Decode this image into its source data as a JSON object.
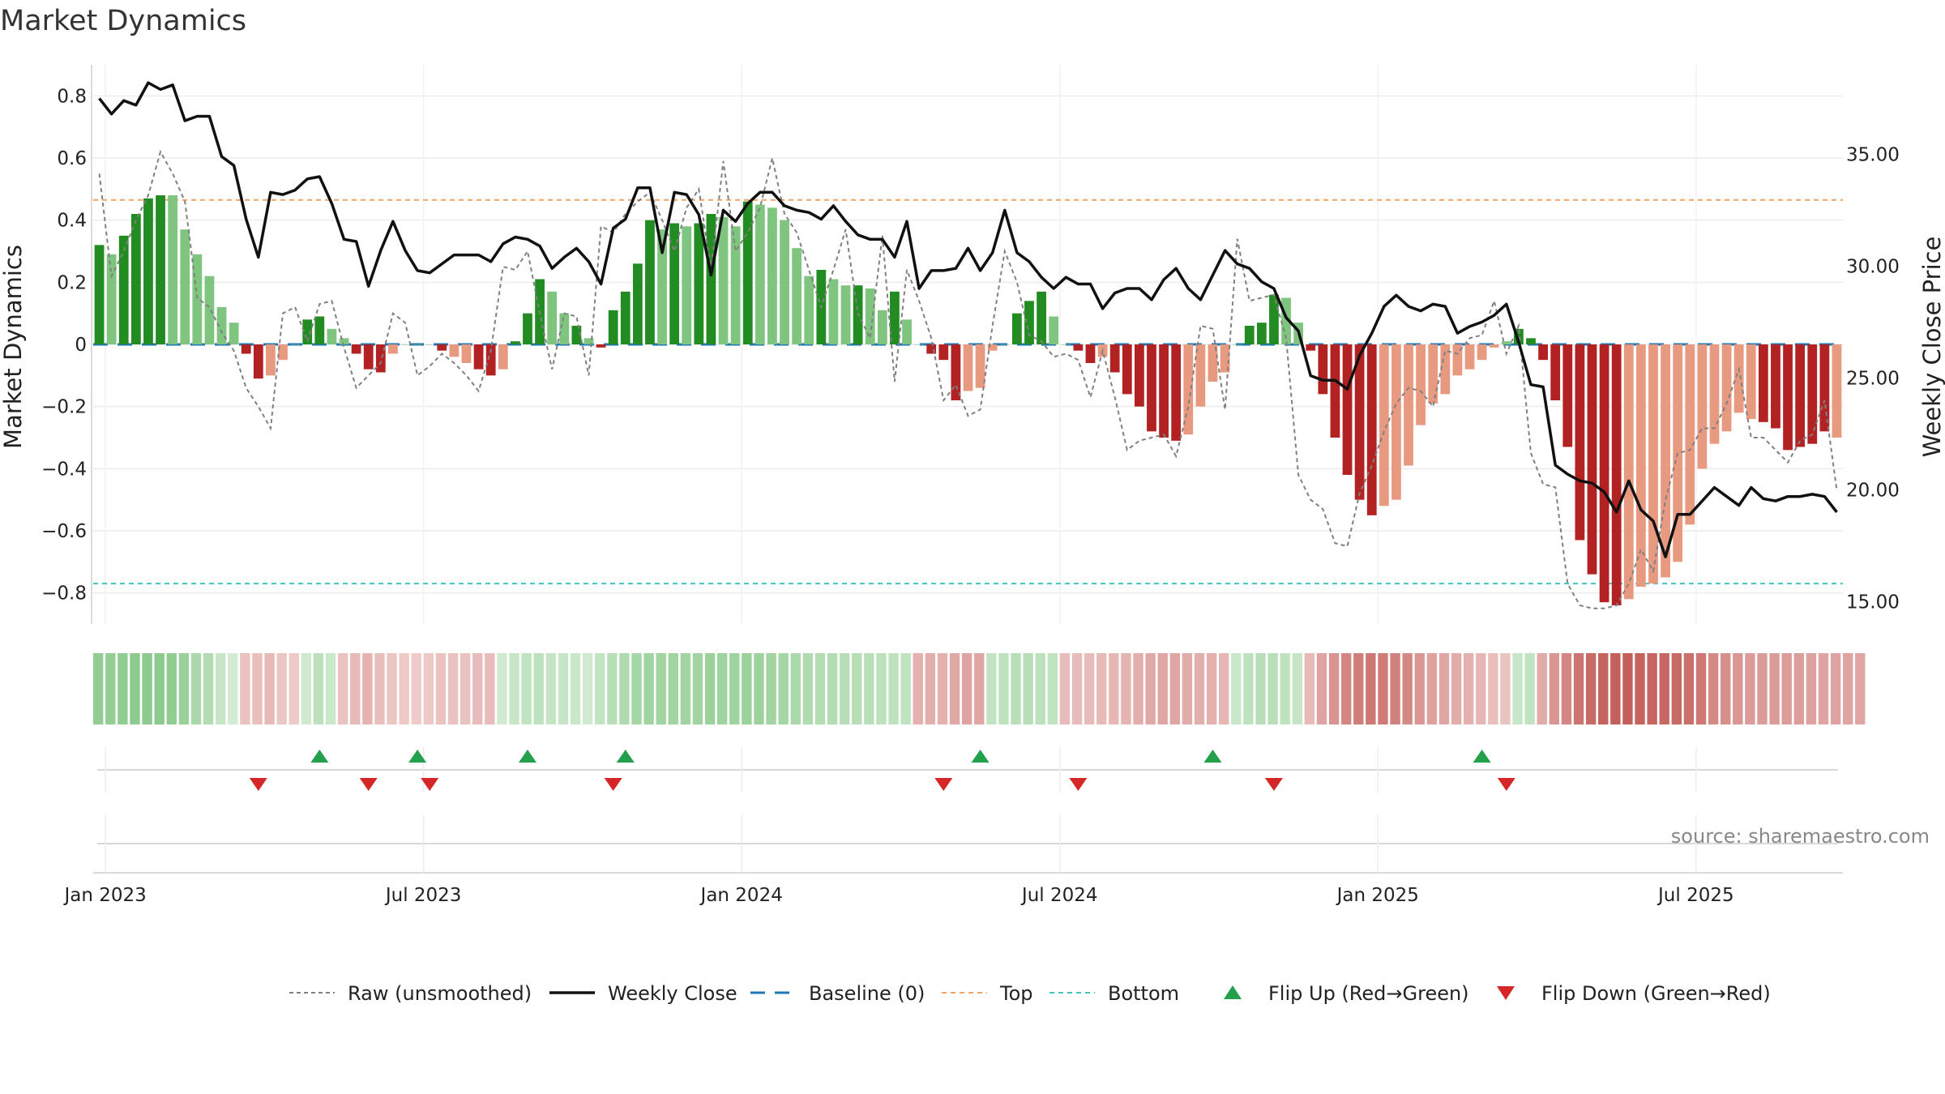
{
  "title": "Market Dynamics",
  "source": "source: sharemaestro.com",
  "colors": {
    "green_dark": "#228B22",
    "green_light": "#7FC47F",
    "red_dark": "#B22222",
    "red_light": "#E89A80",
    "raw": "#808080",
    "close": "#111111",
    "baseline": "#1f77b4",
    "top": "#F4A460",
    "bottom": "#40C4C4",
    "flip_up": "#22A04B",
    "flip_down": "#D62728"
  },
  "chart_data": {
    "type": "bar",
    "ylabel_left": "Market Dynamics",
    "ylabel_right": "Weekly Close Price",
    "ylim_left": [
      -0.9,
      0.9
    ],
    "ylim_right": [
      14.0,
      39.0
    ],
    "y_ticks_left": [
      0.8,
      0.6,
      0.4,
      0.2,
      0,
      -0.2,
      -0.4,
      -0.6,
      -0.8
    ],
    "y_ticks_left_labels": [
      "0.8",
      "0.6",
      "0.4",
      "0.2",
      "0",
      "−0.2",
      "−0.4",
      "−0.6",
      "−0.8"
    ],
    "y_ticks_right": [
      35.0,
      30.0,
      25.0,
      20.0,
      15.0
    ],
    "y_ticks_right_labels": [
      "35.00",
      "30.00",
      "25.00",
      "20.00",
      "15.00"
    ],
    "x_ticks": [
      "Jan 2023",
      "Jul 2023",
      "Jan 2024",
      "Jul 2024",
      "Jan 2025",
      "Jul 2025"
    ],
    "x_tick_weeks": [
      1.5,
      27.5,
      53.5,
      79.5,
      105.5,
      131.5
    ],
    "top_line": 0.465,
    "bottom_line": -0.77,
    "baseline": 0,
    "bars": [
      0.32,
      0.29,
      0.35,
      0.42,
      0.47,
      0.48,
      0.48,
      0.37,
      0.29,
      0.22,
      0.12,
      0.07,
      -0.03,
      -0.11,
      -0.1,
      -0.05,
      0,
      0.08,
      0.09,
      0.05,
      0.02,
      -0.03,
      -0.08,
      -0.09,
      -0.03,
      0,
      0,
      0,
      -0.02,
      -0.04,
      -0.06,
      -0.08,
      -0.1,
      -0.08,
      0.01,
      0.1,
      0.21,
      0.17,
      0.1,
      0.06,
      0.02,
      -0.01,
      0.11,
      0.17,
      0.26,
      0.4,
      0.37,
      0.39,
      0.38,
      0.39,
      0.42,
      0.41,
      0.38,
      0.46,
      0.45,
      0.44,
      0.4,
      0.31,
      0.22,
      0.24,
      0.21,
      0.19,
      0.19,
      0.18,
      0.11,
      0.17,
      0.08,
      0,
      -0.03,
      -0.05,
      -0.18,
      -0.15,
      -0.14,
      -0.02,
      0,
      0.1,
      0.14,
      0.17,
      0.09,
      0,
      -0.02,
      -0.06,
      -0.04,
      -0.09,
      -0.16,
      -0.2,
      -0.28,
      -0.3,
      -0.31,
      -0.29,
      -0.2,
      -0.12,
      -0.09,
      0,
      0.06,
      0.07,
      0.16,
      0.15,
      0.07,
      -0.02,
      -0.16,
      -0.3,
      -0.42,
      -0.5,
      -0.55,
      -0.52,
      -0.5,
      -0.39,
      -0.26,
      -0.19,
      -0.16,
      -0.1,
      -0.08,
      -0.05,
      -0.01,
      0.01,
      0.05,
      0.02,
      -0.05,
      -0.18,
      -0.33,
      -0.63,
      -0.74,
      -0.83,
      -0.84,
      -0.82,
      -0.78,
      -0.77,
      -0.75,
      -0.7,
      -0.58,
      -0.4,
      -0.32,
      -0.28,
      -0.22,
      -0.24,
      -0.25,
      -0.27,
      -0.34,
      -0.33,
      -0.32,
      -0.28,
      -0.3
    ],
    "shade": [
      1,
      0,
      1,
      1,
      1,
      1,
      0,
      0,
      0,
      0,
      0,
      0,
      1,
      1,
      0,
      0,
      0,
      1,
      1,
      0,
      0,
      1,
      1,
      1,
      0,
      0,
      0,
      0,
      1,
      0,
      0,
      1,
      1,
      0,
      1,
      1,
      1,
      0,
      0,
      1,
      0,
      1,
      1,
      1,
      1,
      1,
      0,
      1,
      0,
      1,
      1,
      0,
      0,
      1,
      0,
      0,
      0,
      0,
      0,
      1,
      0,
      0,
      1,
      0,
      0,
      1,
      0,
      0,
      1,
      1,
      1,
      0,
      0,
      0,
      0,
      1,
      1,
      1,
      0,
      0,
      1,
      1,
      0,
      1,
      1,
      1,
      1,
      1,
      1,
      0,
      0,
      0,
      0,
      0,
      1,
      1,
      1,
      0,
      0,
      1,
      1,
      1,
      1,
      1,
      1,
      0,
      0,
      0,
      0,
      0,
      0,
      0,
      0,
      0,
      0,
      0,
      1,
      1,
      1,
      1,
      1,
      1,
      1,
      1,
      1,
      0,
      0,
      0,
      0,
      0,
      0,
      0,
      0,
      0,
      0,
      0,
      1,
      1,
      1,
      1,
      1,
      1,
      0,
      1
    ],
    "weekly_close": [
      37.5,
      36.8,
      37.4,
      37.2,
      38.2,
      37.9,
      38.1,
      36.5,
      36.7,
      36.7,
      34.9,
      34.5,
      32.1,
      30.4,
      33.3,
      33.2,
      33.4,
      33.9,
      34.0,
      32.8,
      31.2,
      31.1,
      29.1,
      30.7,
      32.0,
      30.7,
      29.8,
      29.7,
      30.1,
      30.5,
      30.5,
      30.5,
      30.2,
      31.0,
      31.3,
      31.2,
      30.9,
      29.9,
      30.4,
      30.8,
      30.2,
      29.2,
      31.7,
      32.1,
      33.5,
      33.5,
      30.6,
      33.3,
      33.2,
      32.3,
      29.6,
      32.5,
      32.0,
      32.8,
      33.3,
      33.3,
      32.7,
      32.5,
      32.4,
      32.1,
      32.7,
      32.0,
      31.4,
      31.2,
      31.2,
      30.4,
      32.0,
      29.0,
      29.8,
      29.8,
      29.9,
      30.8,
      29.8,
      30.6,
      32.5,
      30.6,
      30.2,
      29.5,
      29.0,
      29.5,
      29.2,
      29.2,
      28.1,
      28.8,
      29.0,
      29.0,
      28.5,
      29.4,
      29.9,
      29.0,
      28.5,
      29.6,
      30.7,
      30.1,
      29.9,
      29.3,
      29.0,
      27.7,
      27.1,
      25.1,
      24.9,
      24.9,
      24.5,
      26.0,
      27.0,
      28.2,
      28.7,
      28.2,
      28.0,
      28.3,
      28.2,
      27.0,
      27.3,
      27.5,
      27.8,
      28.3,
      26.6,
      24.7,
      24.6,
      21.1,
      20.7,
      20.4,
      20.3,
      19.9,
      19.0,
      20.4,
      19.1,
      18.6,
      17.0,
      18.9,
      18.9,
      19.5,
      20.1,
      19.7,
      19.3,
      20.1,
      19.6,
      19.5,
      19.7,
      19.7,
      19.8,
      19.7,
      19.0
    ],
    "raw": [
      0.55,
      0.22,
      0.3,
      0.4,
      0.48,
      0.62,
      0.55,
      0.46,
      0.15,
      0.12,
      0.04,
      -0.02,
      -0.14,
      -0.2,
      -0.27,
      0.1,
      0.12,
      0.01,
      0.13,
      0.14,
      -0.01,
      -0.14,
      -0.1,
      -0.06,
      0.1,
      0.07,
      -0.1,
      -0.07,
      -0.03,
      -0.06,
      -0.1,
      -0.15,
      -0.02,
      0.25,
      0.24,
      0.3,
      0.1,
      -0.08,
      0.1,
      0.09,
      -0.1,
      0.38,
      0.36,
      0.42,
      0.46,
      0.49,
      0.4,
      0.3,
      0.44,
      0.5,
      0.24,
      0.59,
      0.3,
      0.36,
      0.44,
      0.6,
      0.42,
      0.36,
      0.24,
      0.12,
      0.24,
      0.37,
      0.1,
      0.02,
      0.35,
      -0.12,
      0.24,
      0.14,
      0.02,
      -0.18,
      -0.13,
      -0.23,
      -0.21,
      0.06,
      0.3,
      0.2,
      0.03,
      0.01,
      -0.04,
      -0.03,
      -0.05,
      -0.17,
      -0.02,
      -0.17,
      -0.34,
      -0.31,
      -0.3,
      -0.29,
      -0.36,
      -0.2,
      0.06,
      0.05,
      -0.21,
      0.34,
      0.14,
      0.15,
      0.16,
      0.02,
      -0.42,
      -0.5,
      -0.53,
      -0.64,
      -0.65,
      -0.48,
      -0.39,
      -0.28,
      -0.19,
      -0.14,
      -0.15,
      -0.2,
      -0.02,
      -0.03,
      0.02,
      0.03,
      0.14,
      -0.03,
      0.06,
      -0.35,
      -0.45,
      -0.46,
      -0.77,
      -0.84,
      -0.85,
      -0.85,
      -0.84,
      -0.77,
      -0.66,
      -0.73,
      -0.5,
      -0.35,
      -0.34,
      -0.27,
      -0.27,
      -0.19,
      -0.08,
      -0.3,
      -0.3,
      -0.34,
      -0.38,
      -0.31,
      -0.29,
      -0.18,
      -0.47
    ],
    "heat": [
      0.68,
      0.66,
      0.7,
      0.72,
      0.73,
      0.73,
      0.7,
      0.62,
      0.48,
      0.4,
      0.22,
      0.12,
      -0.18,
      -0.2,
      -0.24,
      -0.15,
      -0.12,
      0.15,
      0.32,
      0.2,
      -0.18,
      -0.24,
      -0.28,
      -0.2,
      -0.15,
      -0.12,
      -0.1,
      -0.12,
      -0.16,
      -0.18,
      -0.18,
      -0.22,
      -0.22,
      0.14,
      0.22,
      0.28,
      0.3,
      0.25,
      0.22,
      0.2,
      0.15,
      0.26,
      0.35,
      0.42,
      0.52,
      0.55,
      0.55,
      0.55,
      0.56,
      0.56,
      0.6,
      0.58,
      0.58,
      0.6,
      0.58,
      0.56,
      0.52,
      0.46,
      0.42,
      0.4,
      0.38,
      0.36,
      0.36,
      0.34,
      0.32,
      0.3,
      0.28,
      -0.3,
      -0.32,
      -0.3,
      -0.36,
      -0.4,
      -0.38,
      0.26,
      0.3,
      0.34,
      0.36,
      0.32,
      0.28,
      -0.22,
      -0.22,
      -0.22,
      -0.24,
      -0.26,
      -0.28,
      -0.32,
      -0.36,
      -0.38,
      -0.38,
      -0.34,
      -0.32,
      -0.3,
      -0.26,
      0.2,
      0.3,
      0.34,
      0.34,
      0.3,
      0.24,
      -0.24,
      -0.4,
      -0.52,
      -0.62,
      -0.68,
      -0.72,
      -0.7,
      -0.66,
      -0.6,
      -0.5,
      -0.42,
      -0.38,
      -0.34,
      -0.3,
      -0.26,
      -0.2,
      -0.18,
      0.22,
      0.28,
      -0.35,
      -0.5,
      -0.62,
      -0.75,
      -0.82,
      -0.88,
      -0.9,
      -0.9,
      -0.88,
      -0.86,
      -0.84,
      -0.82,
      -0.78,
      -0.72,
      -0.6,
      -0.55,
      -0.5,
      -0.46,
      -0.46,
      -0.46,
      -0.45,
      -0.44,
      -0.42,
      -0.4,
      -0.4,
      -0.4,
      -0.38
    ],
    "flip_up_weeks": [
      18,
      26,
      35,
      43,
      72,
      91,
      113
    ],
    "flip_down_weeks": [
      13,
      22,
      27,
      42,
      69,
      80,
      96,
      115
    ],
    "legend": [
      {
        "label": "Raw (unsmoothed)",
        "style": "raw"
      },
      {
        "label": "Weekly Close",
        "style": "close"
      },
      {
        "label": "Baseline (0)",
        "style": "baseline"
      },
      {
        "label": "Top",
        "style": "top"
      },
      {
        "label": "Bottom",
        "style": "bottom"
      },
      {
        "label": "Flip Up (Red→Green)",
        "style": "flip_up"
      },
      {
        "label": "Flip Down (Green→Red)",
        "style": "flip_down"
      }
    ]
  }
}
